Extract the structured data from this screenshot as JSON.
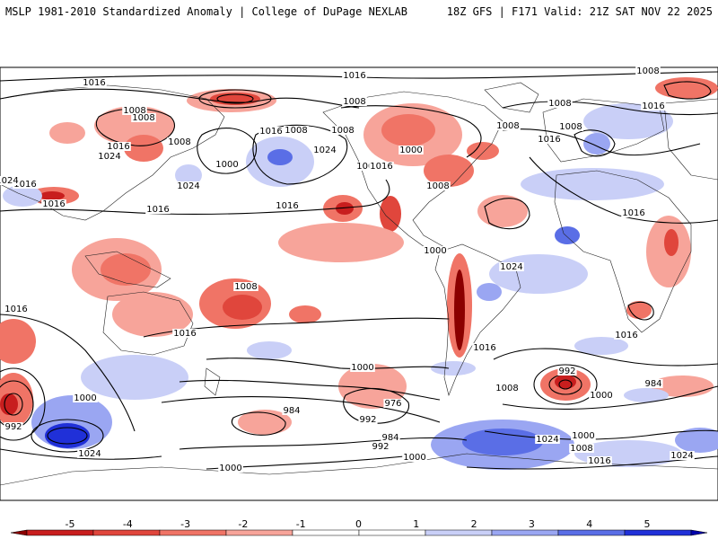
{
  "header": {
    "title": "MSLP 1981-2010 Standardized Anomaly | College of DuPage NEXLAB",
    "run_info": "18Z GFS | F171 Valid: 21Z SAT NOV 22 2025"
  },
  "colorbar": {
    "ticks": [
      "-5",
      "-4",
      "-3",
      "-2",
      "-1",
      "0",
      "1",
      "2",
      "3",
      "4",
      "5"
    ],
    "colors": [
      "#8b0000",
      "#c81e1e",
      "#e0463c",
      "#f07466",
      "#f7a49a",
      "#ffffff",
      "#ffffff",
      "#c9cff7",
      "#9aa6f2",
      "#5a6ee6",
      "#2030d8",
      "#0000aa"
    ]
  },
  "contour_labels": [
    "1016",
    "1008",
    "1008",
    "1016",
    "1024",
    "1008",
    "1000",
    "1008",
    "1016",
    "1024",
    "1008",
    "1008",
    "1000",
    "1008",
    "1016",
    "1024",
    "1016",
    "1024",
    "1016",
    "1016",
    "1016",
    "1016",
    "1008",
    "1016",
    "1016",
    "1008",
    "1008",
    "1008",
    "1016",
    "1008",
    "1016",
    "1008",
    "1000",
    "1016",
    "992",
    "1000",
    "1024",
    "992",
    "984",
    "1000",
    "976",
    "984",
    "992",
    "1000",
    "1008",
    "992",
    "1000",
    "1024",
    "984",
    "1000",
    "1008",
    "1016",
    "1024",
    "1016",
    "1024",
    "1016",
    "1000"
  ]
}
